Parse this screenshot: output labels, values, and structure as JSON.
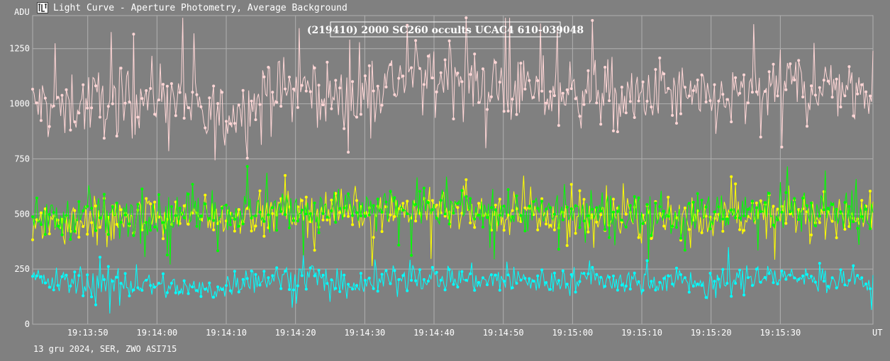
{
  "window": {
    "title": "Light Curve - Aperture Photometry, Average Background",
    "icon": "light-curve-app-icon"
  },
  "footer": {
    "text": "13 gru 2024, SER, ZWO ASI715"
  },
  "colors": {
    "background": "#808080",
    "grid": "#b0b0b0",
    "target": "#ffd6d6",
    "comparison1": "#ffff00",
    "comparison2": "#00ff00",
    "comparison3": "#00ffff",
    "text": "#ffffff"
  },
  "chart_data": {
    "type": "line",
    "title": "(219410) 2000 SC260 occults UCAC4 610-039048",
    "ylabel": "ADU",
    "xlabel": "UT",
    "ylim": [
      0,
      1400
    ],
    "yticks": [
      0,
      250,
      500,
      750,
      1000,
      1250
    ],
    "xlim": [
      0,
      1200
    ],
    "xticks": [
      {
        "pos": 78.7,
        "label": "19:13:50"
      },
      {
        "pos": 177.6,
        "label": "19:14:00"
      },
      {
        "pos": 276.5,
        "label": "19:14:10"
      },
      {
        "pos": 375.4,
        "label": "19:14:20"
      },
      {
        "pos": 474.3,
        "label": "19:14:30"
      },
      {
        "pos": 573.2,
        "label": "19:14:40"
      },
      {
        "pos": 672.1,
        "label": "19:14:50"
      },
      {
        "pos": 771.0,
        "label": "19:15:00"
      },
      {
        "pos": 869.9,
        "label": "19:15:10"
      },
      {
        "pos": 968.8,
        "label": "19:15:20"
      },
      {
        "pos": 1067.7,
        "label": "19:15:30"
      }
    ],
    "grid": true,
    "series": [
      {
        "color": "#ffd6d6",
        "x": [
          0,
          50,
          100,
          150,
          200,
          250,
          300,
          350,
          400,
          450,
          500,
          550,
          600,
          650,
          700,
          750,
          800,
          850,
          900,
          950,
          1000,
          1050,
          1100,
          1150,
          1200
        ],
        "values": [
          990,
          1000,
          1010,
          1020,
          1060,
          920,
          980,
          1060,
          1070,
          1000,
          1090,
          1130,
          1120,
          1080,
          1060,
          1040,
          1070,
          1000,
          1060,
          1010,
          1020,
          1070,
          1090,
          1080,
          1070
        ],
        "noise": 150
      },
      {
        "color": "#ffff00",
        "x": [
          0,
          100,
          200,
          300,
          400,
          500,
          600,
          700,
          800,
          900,
          1000,
          1100,
          1200
        ],
        "values": [
          460,
          480,
          480,
          500,
          510,
          520,
          520,
          490,
          480,
          480,
          490,
          500,
          500
        ],
        "noise": 90
      },
      {
        "color": "#00ff00",
        "x": [
          0,
          100,
          200,
          300,
          400,
          500,
          600,
          700,
          800,
          900,
          1000,
          1100,
          1200
        ],
        "values": [
          480,
          490,
          500,
          510,
          520,
          530,
          530,
          510,
          500,
          500,
          510,
          520,
          520
        ],
        "noise": 90
      },
      {
        "color": "#00ffff",
        "x": [
          0,
          50,
          100,
          150,
          200,
          250,
          300,
          350,
          400,
          450,
          500,
          550,
          600,
          650,
          700,
          750,
          800,
          850,
          900,
          950,
          1000,
          1050,
          1100,
          1150,
          1200
        ],
        "values": [
          200,
          190,
          180,
          180,
          170,
          150,
          200,
          210,
          220,
          150,
          200,
          210,
          210,
          200,
          200,
          190,
          210,
          190,
          200,
          190,
          190,
          220,
          210,
          200,
          200
        ],
        "noise": 60
      }
    ]
  }
}
